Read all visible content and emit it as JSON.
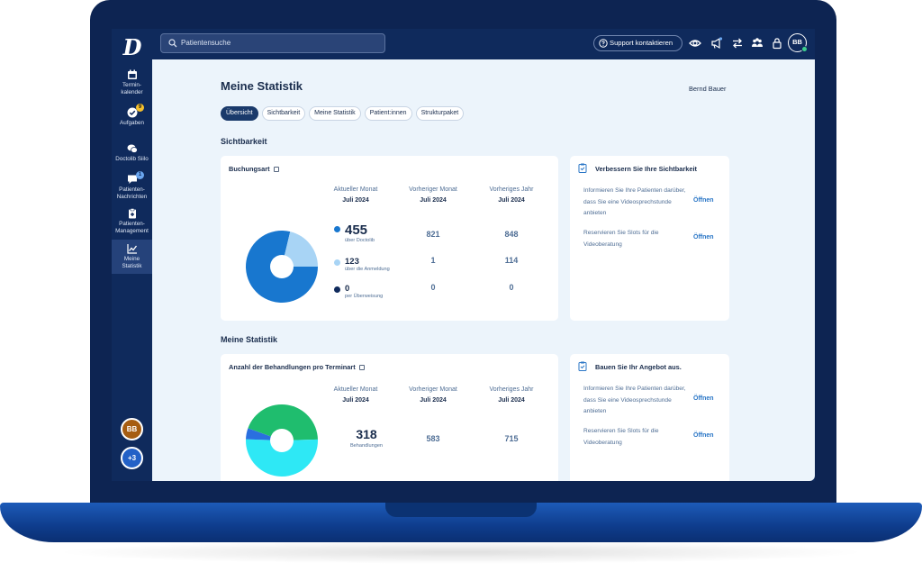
{
  "sidebar": {
    "logo": "D",
    "items": [
      {
        "label": "Termin-\nkalender",
        "icon": "calendar-icon"
      },
      {
        "label": "Aufgaben",
        "icon": "check-circle-icon",
        "badge": "9"
      },
      {
        "label": "Doctolib Siilo",
        "icon": "chat-bubbles-icon"
      },
      {
        "label": "Patienten-\nNachrichten",
        "icon": "message-icon",
        "badge": "1"
      },
      {
        "label": "Patienten-\nManagement",
        "icon": "clipboard-icon"
      },
      {
        "label": "Meine\nStatistik",
        "icon": "line-chart-icon"
      }
    ],
    "user_initials": "BB",
    "more_label": "+3"
  },
  "topbar": {
    "search_placeholder": "Patientensuche",
    "support_label": "Support kontaktieren",
    "avatar_initials": "BB"
  },
  "page": {
    "title": "Meine Statistik",
    "user_name": "Bernd Bauer",
    "tabs": [
      "Übersicht",
      "Sichtbarkeit",
      "Meine Statistik",
      "Patient:innen",
      "Strukturpaket"
    ]
  },
  "visibility": {
    "section_title": "Sichtbarkeit",
    "card_title": "Buchungsart",
    "columns": [
      {
        "label": "Aktueller Monat",
        "period": "Juli 2024"
      },
      {
        "label": "Vorheriger Monat",
        "period": "Juli 2024"
      },
      {
        "label": "Vorheriges Jahr",
        "period": "Juli 2024"
      }
    ],
    "rows": [
      {
        "value": "455",
        "label": "über Doctolib",
        "prev_month": "821",
        "prev_year": "848",
        "color": "#1877cf"
      },
      {
        "value": "123",
        "label": "über die Anmeldung",
        "prev_month": "1",
        "prev_year": "114",
        "color": "#a8d4f5"
      },
      {
        "value": "0",
        "label": "per Überweisung",
        "prev_month": "0",
        "prev_year": "0",
        "color": "#0f2a5c"
      }
    ],
    "tips_title": "Verbessern Sie Ihre Sichtbarkeit",
    "tips": [
      {
        "text": "Informieren Sie Ihre Patienten darüber, dass Sie eine Videosprechstunde anbieten",
        "link": "Öffnen"
      },
      {
        "text": "Reservieren Sie Slots für die Videoberatung",
        "link": "Öffnen"
      }
    ]
  },
  "statistics": {
    "section_title": "Meine Statistik",
    "card_title": "Anzahl der Behandlungen pro Terminart",
    "columns": [
      {
        "label": "Aktueller Monat",
        "period": "Juli 2024"
      },
      {
        "label": "Vorheriger Monat",
        "period": "Juli 2024"
      },
      {
        "label": "Vorheriges Jahr",
        "period": "Juli 2024"
      }
    ],
    "total": "318",
    "total_label": "Behandlungen",
    "prev_month": "583",
    "prev_year": "715",
    "tips_title": "Bauen Sie Ihr Angebot aus.",
    "tips": [
      {
        "text": "Informieren Sie Ihre Patienten darüber, dass Sie eine Videosprechstunde anbieten",
        "link": "Öffnen"
      },
      {
        "text": "Reservieren Sie Slots für die Videoberatung",
        "link": "Öffnen"
      }
    ]
  },
  "chart_data": [
    {
      "type": "pie",
      "categories": [
        "über Doctolib",
        "über die Anmeldung",
        "per Überweisung"
      ],
      "values": [
        455,
        123,
        0
      ],
      "colors": [
        "#1877cf",
        "#a8d4f5",
        "#0f2a5c"
      ],
      "title": "Buchungsart"
    },
    {
      "type": "pie",
      "categories": [
        "",
        "",
        ""
      ],
      "values": [
        44,
        51,
        5
      ],
      "colors": [
        "#1fbd6e",
        "#2ee8f5",
        "#2a6fe0"
      ],
      "title": "Anzahl der Behandlungen pro Terminart"
    }
  ]
}
